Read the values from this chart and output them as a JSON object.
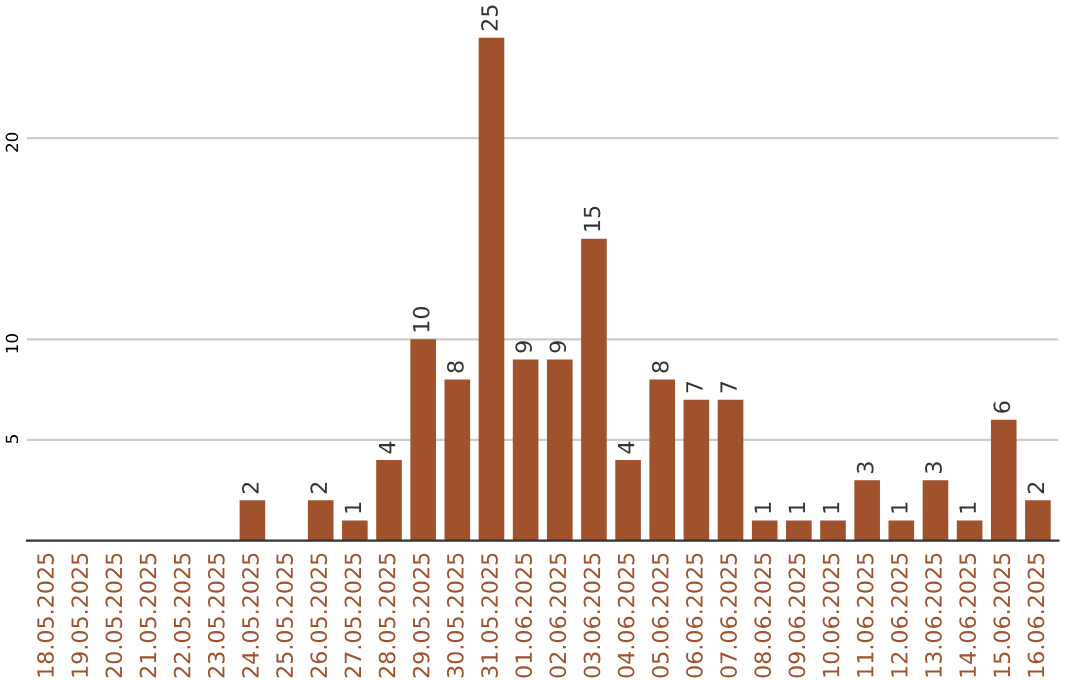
{
  "chart_data": {
    "type": "bar",
    "categories": [
      "18.05.2025",
      "19.05.2025",
      "20.05.2025",
      "21.05.2025",
      "22.05.2025",
      "23.05.2025",
      "24.05.2025",
      "25.05.2025",
      "26.05.2025",
      "27.05.2025",
      "28.05.2025",
      "29.05.2025",
      "30.05.2025",
      "31.05.2025",
      "01.06.2025",
      "02.06.2025",
      "03.06.2025",
      "04.06.2025",
      "05.06.2025",
      "06.06.2025",
      "07.06.2025",
      "08.06.2025",
      "09.06.2025",
      "10.06.2025",
      "11.06.2025",
      "12.06.2025",
      "13.06.2025",
      "14.06.2025",
      "15.06.2025",
      "16.06.2025"
    ],
    "values": [
      0,
      0,
      0,
      0,
      0,
      0,
      2,
      0,
      2,
      1,
      4,
      10,
      8,
      25,
      9,
      9,
      15,
      4,
      8,
      7,
      7,
      1,
      1,
      1,
      3,
      1,
      3,
      1,
      6,
      2
    ],
    "value_labels": [
      null,
      null,
      null,
      null,
      null,
      null,
      "2",
      null,
      "2",
      "1",
      "4",
      "10",
      "8",
      "25",
      "9",
      "9",
      "15",
      "4",
      "8",
      "7",
      "7",
      "1",
      "1",
      "1",
      "3",
      "1",
      "3",
      "1",
      "6",
      "2"
    ],
    "color": "#a0522d",
    "ylim": [
      0,
      25
    ],
    "yticks": [
      5,
      10,
      20
    ],
    "grid": "y"
  }
}
